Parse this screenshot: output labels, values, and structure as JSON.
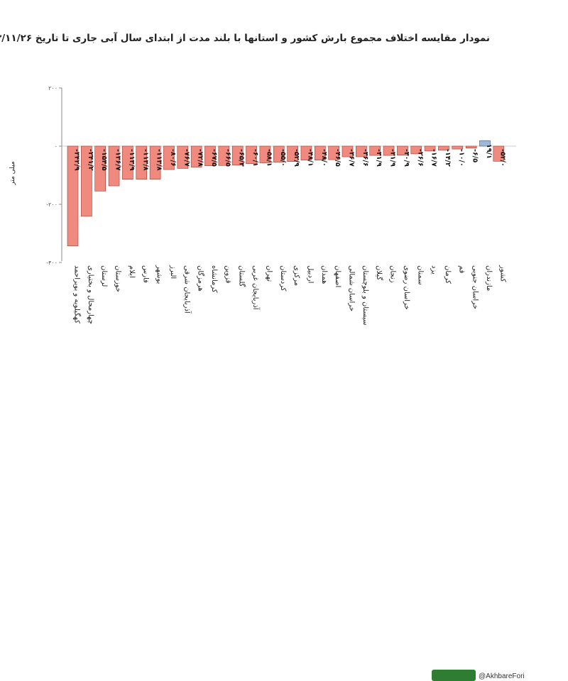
{
  "chart_data": {
    "type": "bar",
    "title": "نمودار مقایسه اختلاف مجموع بارش کشور و استانها با بلند مدت از ابتدای سال آبی جاری تا تاریخ ۱۴۰۳/۱۱/۲۶",
    "ylabel": "میلی متر",
    "ylim": [
      -400,
      200
    ],
    "yticks": [
      200,
      0,
      -200,
      -400
    ],
    "ytick_labels": [
      "۲۰۰",
      "۰",
      "-۲۰۰",
      "-۴۰۰"
    ],
    "categories": [
      "کهگیلویه و بویراحمد",
      "چهارمحال و بختیاری",
      "لرستان",
      "خوزستان",
      "ایلام",
      "فارس",
      "بوشهر",
      "البرز",
      "آذربایجان شرقی",
      "هرمزگان",
      "کرمانشاه",
      "قزوین",
      "گلستان",
      "آذربایجان غربی",
      "تهران",
      "کردستان",
      "مرکزی",
      "اردبیل",
      "همدان",
      "اصفهان",
      "خراسان شمالی",
      "سیستان و بلوچستان",
      "گیلان",
      "زنجان",
      "خراسان رضوی",
      "سمنان",
      "یزد",
      "کرمان",
      "قم",
      "خراسان جنوبی",
      "مازندران",
      "کشور"
    ],
    "values": [
      -342.9,
      -241.2,
      -154.5,
      -136.7,
      -113.9,
      -113.8,
      -113.8,
      -80.6,
      -76.7,
      -72.8,
      -67.5,
      -66.5,
      -65.3,
      -60.1,
      -58.1,
      -55.0,
      -52.9,
      -48.1,
      -48.0,
      -46.5,
      -36.7,
      -36.6,
      -31.9,
      -31.9,
      -30.9,
      -26.6,
      -16.7,
      -14.2,
      -10.0,
      -6.5,
      19.1,
      -52.0
    ],
    "value_labels": [
      "-۳۴۲/۹",
      "-۲۴۱/۲",
      "-۱۵۴/۵",
      "-۱۳۶/۷",
      "-۱۱۳/۹",
      "-۱۱۳/۸",
      "-۱۱۳/۸",
      "-۸۰/۶",
      "-۷۶/۷",
      "-۷۲/۸",
      "-۶۷/۵",
      "-۶۶/۵",
      "-۶۵/۳",
      "-۶۰/۱",
      "-۵۸/۱",
      "-۵۵/۰",
      "-۵۲/۹",
      "-۴۸/۱",
      "-۴۸/۰",
      "-۴۶/۵",
      "-۳۶/۷",
      "-۳۶/۶",
      "-۳۱/۹",
      "-۳۱/۹",
      "-۳۰/۹",
      "-۲۶/۶",
      "-۱۶/۷",
      "-۱۴/۲",
      "-۱۰/۰",
      "-۶/۵",
      "۱۹/۱",
      "-۵۲/۰"
    ],
    "colors": {
      "negative": "#f08a7e",
      "negative_border": "#9e3b33",
      "positive": "#9fb8d8",
      "positive_border": "#3d5a80"
    },
    "grid": false,
    "legend": "none"
  },
  "footer": {
    "handle": "@AkhbareFori",
    "logo_icon": "akhbare-fori-logo-icon"
  }
}
